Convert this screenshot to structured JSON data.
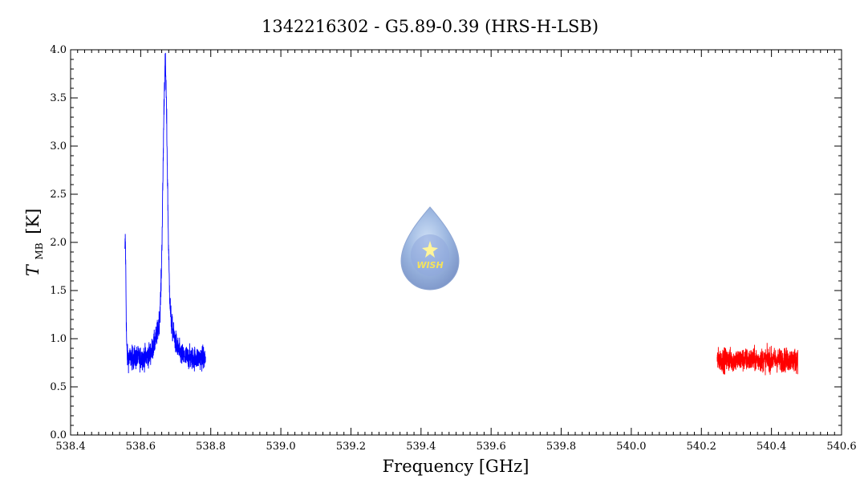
{
  "chart_data": {
    "type": "line",
    "title": "1342216302 - G5.89-0.39 (HRS-H-LSB)",
    "xlabel": "Frequency [GHz]",
    "ylabel_main": "T",
    "ylabel_sub": "MB",
    "ylabel_unit": "[K]",
    "xlim": [
      538.4,
      540.6
    ],
    "ylim": [
      0.0,
      4.0
    ],
    "x_ticks": [
      "538.4",
      "538.6",
      "538.8",
      "539.0",
      "539.2",
      "539.4",
      "539.6",
      "539.8",
      "540.0",
      "540.2",
      "540.4",
      "540.6"
    ],
    "y_ticks": [
      "0.0",
      "0.5",
      "1.0",
      "1.5",
      "2.0",
      "2.5",
      "3.0",
      "3.5",
      "4.0"
    ],
    "grid": false,
    "series": [
      {
        "color": "#0000ff",
        "x_range": [
          538.555,
          538.785
        ],
        "baseline": 0.8,
        "noise": 0.13,
        "peaks": [
          {
            "center": 538.67,
            "amplitude": 2.5,
            "width": 0.006
          },
          {
            "center": 538.67,
            "amplitude": 0.5,
            "width": 0.02
          },
          {
            "center": 538.556,
            "amplitude": 1.2,
            "width": 0.002
          }
        ],
        "points": [
          [
            538.555,
            2.08
          ],
          [
            538.558,
            1.5
          ],
          [
            538.56,
            1.1
          ],
          [
            538.57,
            0.8
          ],
          [
            538.6,
            0.8
          ],
          [
            538.62,
            0.78
          ],
          [
            538.64,
            0.8
          ],
          [
            538.655,
            1.0
          ],
          [
            538.665,
            1.9
          ],
          [
            538.67,
            3.5
          ],
          [
            538.675,
            2.2
          ],
          [
            538.69,
            1.0
          ],
          [
            538.72,
            0.85
          ],
          [
            538.75,
            0.8
          ],
          [
            538.785,
            0.8
          ]
        ]
      },
      {
        "color": "#ff0000",
        "x_range": [
          540.245,
          540.475
        ],
        "baseline": 0.78,
        "noise": 0.13,
        "peaks": [],
        "points": [
          [
            540.245,
            0.78
          ],
          [
            540.3,
            0.8
          ],
          [
            540.35,
            0.8
          ],
          [
            540.4,
            0.78
          ],
          [
            540.475,
            0.78
          ]
        ]
      }
    ]
  },
  "logo": {
    "text": "WISH",
    "center_x": 539.43,
    "center_y": 2.0
  }
}
